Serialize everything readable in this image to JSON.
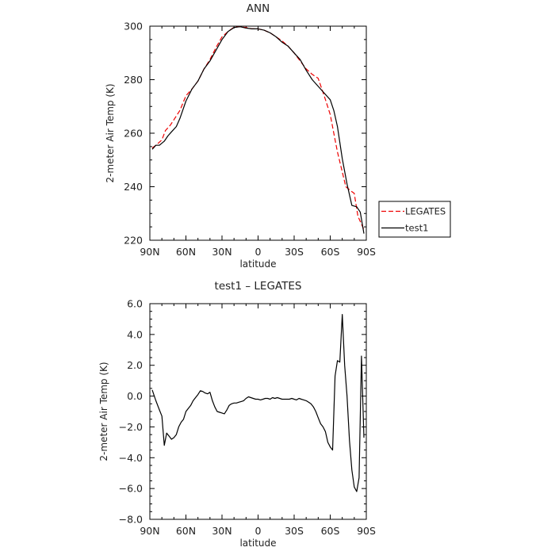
{
  "chart_data": [
    {
      "type": "line",
      "title": "ANN",
      "xlabel": "latitude",
      "ylabel": "2-meter Air Temp (K)",
      "xlim": [
        90,
        -90
      ],
      "ylim": [
        220,
        300
      ],
      "xticks": [
        90,
        60,
        30,
        0,
        -30,
        -60,
        -90
      ],
      "xtick_labels": [
        "90N",
        "60N",
        "30N",
        "0",
        "30S",
        "60S",
        "90S"
      ],
      "yticks": [
        220,
        240,
        260,
        280,
        300
      ],
      "ytick_labels": [
        "220",
        "240",
        "260",
        "280",
        "300"
      ],
      "legend": "outside-right",
      "series": [
        {
          "name": "LEGATES",
          "color": "#ee0000",
          "dash": true,
          "x": [
            88,
            85,
            80,
            77,
            73,
            70,
            65,
            60,
            55,
            50,
            45,
            40,
            35,
            30,
            25,
            20,
            15,
            10,
            5,
            0,
            -5,
            -10,
            -15,
            -20,
            -25,
            -30,
            -35,
            -40,
            -45,
            -50,
            -55,
            -60,
            -63,
            -66,
            -70,
            -73,
            -77,
            -80,
            -83,
            -85,
            -88
          ],
          "y": [
            254.5,
            255.5,
            257.5,
            261,
            263,
            265,
            268.5,
            274,
            276.5,
            279.5,
            284,
            287.5,
            292,
            296,
            298,
            299.6,
            299.8,
            299.5,
            299,
            299,
            298.5,
            297.5,
            296,
            294.5,
            292.5,
            290,
            287,
            284,
            282,
            280.5,
            274,
            267,
            260,
            253,
            245.5,
            240,
            238.5,
            237.5,
            229,
            227,
            224
          ]
        },
        {
          "name": "test1",
          "color": "#000000",
          "dash": false,
          "x": [
            88,
            85,
            82,
            78,
            75,
            72,
            68,
            65,
            60,
            55,
            50,
            45,
            40,
            35,
            30,
            25,
            20,
            15,
            10,
            5,
            0,
            -5,
            -10,
            -15,
            -20,
            -25,
            -30,
            -35,
            -40,
            -45,
            -50,
            -55,
            -60,
            -63,
            -66,
            -70,
            -74,
            -78,
            -82,
            -85,
            -88
          ],
          "y": [
            254,
            255.5,
            255.5,
            257,
            259,
            260.5,
            262.5,
            265.5,
            272,
            276.5,
            279.5,
            284,
            287,
            291,
            295,
            298,
            299.5,
            299.8,
            299.3,
            299,
            299,
            298.5,
            297.5,
            296,
            294,
            292.5,
            290,
            287.5,
            283.5,
            280,
            277.5,
            275,
            272.5,
            268.5,
            262.5,
            250.5,
            241,
            233,
            232.5,
            230.5,
            222.5
          ]
        }
      ]
    },
    {
      "type": "line",
      "title": "test1 – LEGATES",
      "xlabel": "latitude",
      "ylabel": "2-meter Air Temp (K)",
      "xlim": [
        90,
        -90
      ],
      "ylim": [
        -8,
        6
      ],
      "xticks": [
        90,
        60,
        30,
        0,
        -30,
        -60,
        -90
      ],
      "xtick_labels": [
        "90N",
        "60N",
        "30N",
        "0",
        "30S",
        "60S",
        "90S"
      ],
      "yticks": [
        -8,
        -6,
        -4,
        -2,
        0,
        2,
        4,
        6
      ],
      "ytick_labels": [
        "−8.0",
        "−6.0",
        "−4.0",
        "−2.0",
        "0.0",
        "2.0",
        "4.0",
        "6.0"
      ],
      "series": [
        {
          "name": "",
          "color": "#000000",
          "dash": false,
          "x": [
            88,
            85,
            82,
            80,
            78,
            76,
            74,
            72,
            70,
            68,
            66,
            64,
            62,
            60,
            58,
            56,
            54,
            52,
            50,
            48,
            46,
            44,
            42,
            40,
            38,
            36,
            34,
            32,
            30,
            28,
            26,
            24,
            22,
            20,
            18,
            16,
            14,
            12,
            10,
            8,
            6,
            4,
            2,
            0,
            -2,
            -4,
            -6,
            -8,
            -10,
            -12,
            -14,
            -16,
            -18,
            -20,
            -22,
            -24,
            -26,
            -28,
            -30,
            -32,
            -34,
            -36,
            -38,
            -40,
            -42,
            -44,
            -46,
            -48,
            -50,
            -52,
            -54,
            -56,
            -58,
            -60,
            -62,
            -64,
            -66,
            -68,
            -70,
            -72,
            -74,
            -76,
            -78,
            -80,
            -82,
            -84,
            -86,
            -88
          ],
          "y": [
            0.4,
            -0.3,
            -0.9,
            -1.3,
            -3.2,
            -2.4,
            -2.6,
            -2.8,
            -2.7,
            -2.5,
            -2.0,
            -1.7,
            -1.5,
            -1.0,
            -0.8,
            -0.6,
            -0.3,
            -0.1,
            0.1,
            0.35,
            0.3,
            0.2,
            0.15,
            0.25,
            -0.3,
            -0.7,
            -1.0,
            -1.05,
            -1.1,
            -1.15,
            -0.9,
            -0.6,
            -0.5,
            -0.45,
            -0.45,
            -0.4,
            -0.35,
            -0.3,
            -0.15,
            -0.05,
            -0.1,
            -0.15,
            -0.2,
            -0.2,
            -0.25,
            -0.2,
            -0.15,
            -0.15,
            -0.2,
            -0.1,
            -0.15,
            -0.1,
            -0.15,
            -0.2,
            -0.2,
            -0.2,
            -0.2,
            -0.15,
            -0.2,
            -0.25,
            -0.15,
            -0.2,
            -0.25,
            -0.3,
            -0.4,
            -0.5,
            -0.7,
            -1.0,
            -1.4,
            -1.8,
            -2.0,
            -2.3,
            -3.0,
            -3.3,
            -3.5,
            1.3,
            2.3,
            2.2,
            5.3,
            2.0,
            0.0,
            -2.9,
            -4.8,
            -5.9,
            -6.2,
            -5.3,
            2.6,
            -2.7
          ]
        }
      ]
    }
  ]
}
